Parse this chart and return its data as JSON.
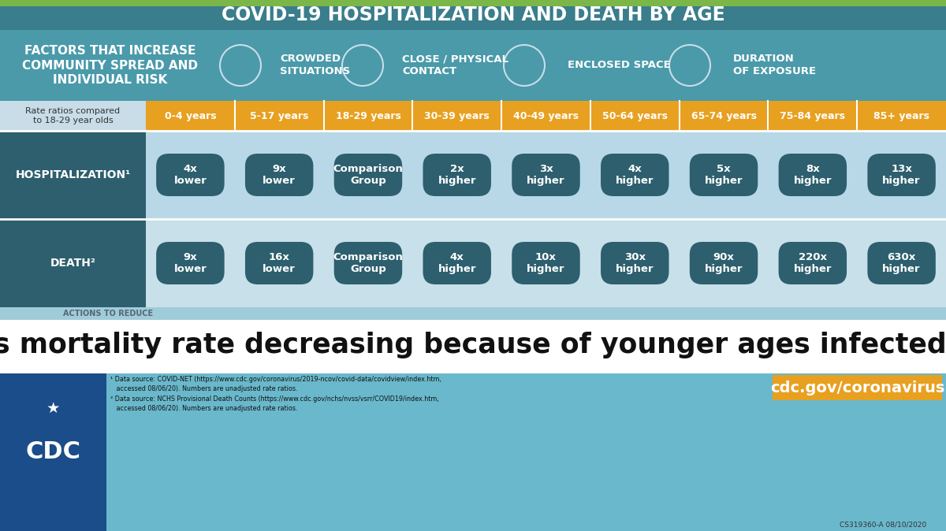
{
  "title": "COVID-19 HOSPITALIZATION AND DEATH BY AGE",
  "title_bg": "#3a7d8c",
  "title_color": "#ffffff",
  "factors_bg": "#4a9aaa",
  "factors_label": "FACTORS THAT INCREASE\nCOMMUNITY SPREAD AND\nINDIVIDUAL RISK",
  "factors": [
    "CROWDED\nSITUATIONS",
    "CLOSE / PHYSICAL\nCONTACT",
    "ENCLOSED SPACE",
    "DURATION\nOF EXPOSURE"
  ],
  "age_header_label": "Rate ratios compared\nto 18-29 year olds",
  "age_groups": [
    "0-4 years",
    "5-17 years",
    "18-29 years",
    "30-39 years",
    "40-49 years",
    "50-64 years",
    "65-74 years",
    "75-84 years",
    "85+ years"
  ],
  "hosp_label": "HOSPITALIZATION¹",
  "hosp_values": [
    "4x\nlower",
    "9x\nlower",
    "Comparison\nGroup",
    "2x\nhigher",
    "3x\nhigher",
    "4x\nhigher",
    "5x\nhigher",
    "8x\nhigher",
    "13x\nhigher"
  ],
  "death_label": "DEATH²",
  "death_values": [
    "9x\nlower",
    "16x\nlower",
    "Comparison\nGroup",
    "4x\nhigher",
    "10x\nhigher",
    "30x\nhigher",
    "90x\nhigher",
    "220x\nhigher",
    "630x\nhigher"
  ],
  "age_header_bg": "#e8a020",
  "age_row_bg": "#c8dde8",
  "hosp_row_bg": "#b8d8e8",
  "death_row_bg": "#c8e0ea",
  "row_label_bg": "#2d5f6e",
  "pill_color": "#2d5f6e",
  "bottom_question": "Is mortality rate decreasing because of younger ages infected?",
  "bottom_bg": "#ffffff",
  "bottom_text_color": "#111111",
  "footer_bg": "#6ab8cc",
  "cdc_logo_bg": "#1a4d8a",
  "cdc_url": "cdc.gov/coronavirus",
  "cdc_url_bg": "#e8a020",
  "footnote1": "¹ Data source: COVID-NET (https://www.cdc.gov/coronavirus/2019-ncov/covid-data/covidview/index.htm,\n   accessed 08/06/20). Numbers are unadjusted rate ratios.",
  "footnote2": "² Data source: NCHS Provisional Death Counts (https://www.cdc.gov/nchs/nvss/vsrr/COVID19/index.htm,\n   accessed 08/06/20). Numbers are unadjusted rate ratios.",
  "cs_number": "CS319360-A 08/10/2020",
  "title_green_bar": "#7ab648",
  "actions_bg": "#9fccd8",
  "actions_text": "ACTIONS TO REDUCE ..."
}
